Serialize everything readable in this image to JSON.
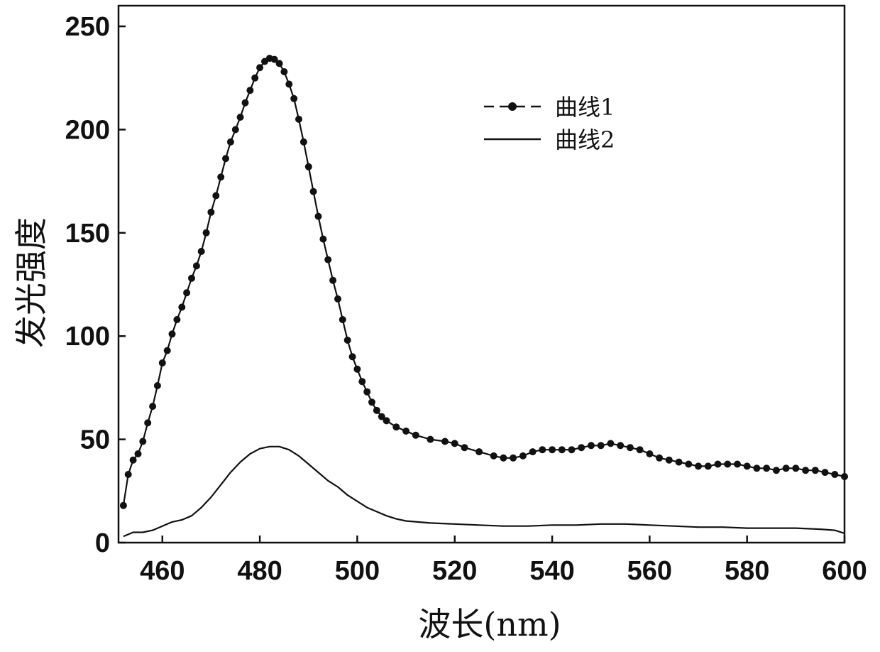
{
  "chart_data": {
    "type": "line",
    "xlabel": "波长(nm)",
    "ylabel": "发光强度",
    "xlim": [
      451,
      600
    ],
    "ylim": [
      0,
      260
    ],
    "x_ticks": [
      460,
      480,
      500,
      520,
      540,
      560,
      580,
      600
    ],
    "y_ticks": [
      0,
      50,
      100,
      150,
      200,
      250
    ],
    "grid": false,
    "legend_position": "top-right",
    "series": [
      {
        "name": "曲线1",
        "style": "line-with-markers",
        "color": "#111111",
        "points": [
          [
            452,
            18
          ],
          [
            453,
            33
          ],
          [
            454,
            40
          ],
          [
            455,
            43
          ],
          [
            456,
            49
          ],
          [
            457,
            58
          ],
          [
            458,
            66
          ],
          [
            459,
            76
          ],
          [
            460,
            87
          ],
          [
            461,
            93
          ],
          [
            462,
            101
          ],
          [
            463,
            108
          ],
          [
            464,
            114
          ],
          [
            465,
            121
          ],
          [
            466,
            128
          ],
          [
            467,
            134
          ],
          [
            468,
            141
          ],
          [
            469,
            150
          ],
          [
            470,
            160
          ],
          [
            471,
            168
          ],
          [
            472,
            177
          ],
          [
            473,
            186
          ],
          [
            474,
            194
          ],
          [
            475,
            200
          ],
          [
            476,
            206
          ],
          [
            477,
            213
          ],
          [
            478,
            219
          ],
          [
            479,
            225
          ],
          [
            480,
            230
          ],
          [
            481,
            233
          ],
          [
            482,
            234.5
          ],
          [
            483,
            234
          ],
          [
            484,
            232
          ],
          [
            485,
            228
          ],
          [
            486,
            222
          ],
          [
            487,
            215
          ],
          [
            488,
            205
          ],
          [
            489,
            194
          ],
          [
            490,
            182
          ],
          [
            491,
            170
          ],
          [
            492,
            158
          ],
          [
            493,
            147
          ],
          [
            494,
            137
          ],
          [
            495,
            127
          ],
          [
            496,
            118
          ],
          [
            497,
            108
          ],
          [
            498,
            98
          ],
          [
            499,
            90
          ],
          [
            500,
            84
          ],
          [
            501,
            78
          ],
          [
            502,
            73
          ],
          [
            503,
            68
          ],
          [
            504,
            64
          ],
          [
            505,
            61
          ],
          [
            506,
            59
          ],
          [
            508,
            56
          ],
          [
            510,
            54
          ],
          [
            512,
            52
          ],
          [
            515,
            50
          ],
          [
            518,
            49
          ],
          [
            520,
            48
          ],
          [
            522,
            46
          ],
          [
            525,
            44
          ],
          [
            528,
            42
          ],
          [
            530,
            41
          ],
          [
            532,
            41
          ],
          [
            534,
            42
          ],
          [
            536,
            44
          ],
          [
            538,
            45
          ],
          [
            540,
            45
          ],
          [
            542,
            45
          ],
          [
            544,
            45
          ],
          [
            546,
            46
          ],
          [
            548,
            47
          ],
          [
            550,
            47
          ],
          [
            552,
            48
          ],
          [
            554,
            47
          ],
          [
            556,
            46
          ],
          [
            558,
            45
          ],
          [
            560,
            43
          ],
          [
            562,
            41
          ],
          [
            564,
            40
          ],
          [
            566,
            39
          ],
          [
            568,
            38
          ],
          [
            570,
            37
          ],
          [
            572,
            37
          ],
          [
            574,
            38
          ],
          [
            576,
            38
          ],
          [
            578,
            38
          ],
          [
            580,
            37
          ],
          [
            582,
            36
          ],
          [
            584,
            36
          ],
          [
            586,
            35
          ],
          [
            588,
            36
          ],
          [
            590,
            36
          ],
          [
            592,
            35
          ],
          [
            594,
            35
          ],
          [
            596,
            34
          ],
          [
            598,
            33
          ],
          [
            600,
            32
          ]
        ]
      },
      {
        "name": "曲线2",
        "style": "solid-line",
        "color": "#111111",
        "points": [
          [
            452,
            3
          ],
          [
            453,
            4
          ],
          [
            454,
            5
          ],
          [
            456,
            5
          ],
          [
            458,
            6
          ],
          [
            460,
            8
          ],
          [
            462,
            10
          ],
          [
            464,
            11
          ],
          [
            466,
            13
          ],
          [
            468,
            17
          ],
          [
            470,
            22
          ],
          [
            472,
            28
          ],
          [
            474,
            34
          ],
          [
            476,
            39
          ],
          [
            478,
            43
          ],
          [
            480,
            45.5
          ],
          [
            482,
            46.5
          ],
          [
            484,
            46.5
          ],
          [
            486,
            45
          ],
          [
            488,
            42
          ],
          [
            490,
            38
          ],
          [
            492,
            34
          ],
          [
            494,
            30
          ],
          [
            496,
            27
          ],
          [
            498,
            23
          ],
          [
            500,
            20
          ],
          [
            502,
            17
          ],
          [
            504,
            15
          ],
          [
            506,
            13
          ],
          [
            508,
            11.5
          ],
          [
            510,
            10.5
          ],
          [
            515,
            9.5
          ],
          [
            520,
            9
          ],
          [
            525,
            8.5
          ],
          [
            530,
            8
          ],
          [
            535,
            8
          ],
          [
            540,
            8.5
          ],
          [
            545,
            8.5
          ],
          [
            550,
            9
          ],
          [
            555,
            9
          ],
          [
            560,
            8.5
          ],
          [
            565,
            8
          ],
          [
            570,
            7.5
          ],
          [
            575,
            7.5
          ],
          [
            580,
            7
          ],
          [
            585,
            7
          ],
          [
            590,
            7
          ],
          [
            595,
            6.5
          ],
          [
            598,
            6
          ],
          [
            600,
            4.5
          ]
        ]
      }
    ]
  }
}
